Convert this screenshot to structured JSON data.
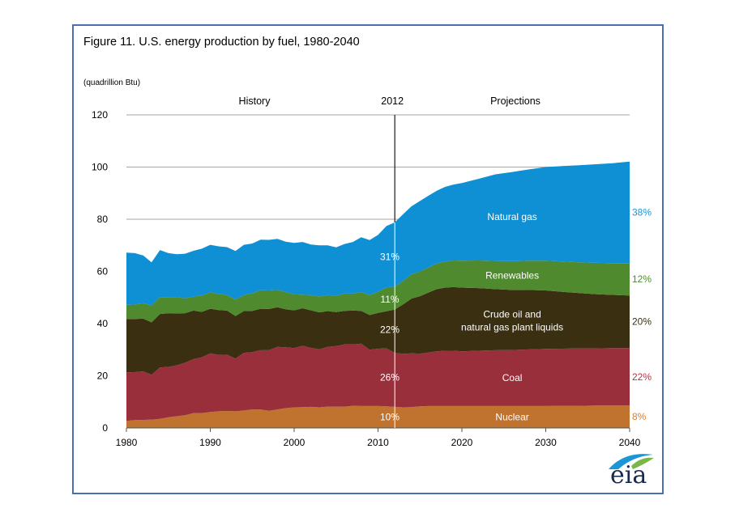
{
  "chart_data": {
    "type": "area",
    "stacked": true,
    "title": "Figure 11. U.S. energy production by fuel, 1980-2040",
    "ylabel": "(quadrillion  Btu)",
    "xlim": [
      1980,
      2040
    ],
    "ylim": [
      0,
      120
    ],
    "x_ticks": [
      1980,
      1990,
      2000,
      2010,
      2020,
      2030,
      2040
    ],
    "y_ticks": [
      0,
      20,
      40,
      60,
      80,
      100,
      120
    ],
    "divider": {
      "year": 2012,
      "label": "2012",
      "left_label": "History",
      "right_label": "Projections"
    },
    "x": [
      1980,
      1981,
      1982,
      1983,
      1984,
      1985,
      1986,
      1987,
      1988,
      1989,
      1990,
      1991,
      1992,
      1993,
      1994,
      1995,
      1996,
      1997,
      1998,
      1999,
      2000,
      2001,
      2002,
      2003,
      2004,
      2005,
      2006,
      2007,
      2008,
      2009,
      2010,
      2011,
      2012,
      2013,
      2014,
      2015,
      2016,
      2017,
      2018,
      2019,
      2020,
      2022,
      2024,
      2026,
      2028,
      2030,
      2032,
      2034,
      2036,
      2038,
      2040
    ],
    "series": [
      {
        "name": "Nuclear",
        "color": "#c0722f",
        "label_color": "#e07b2a",
        "history_share": "10%",
        "end_share": "8%",
        "values": [
          2.7,
          3.0,
          3.1,
          3.2,
          3.5,
          4.1,
          4.5,
          4.9,
          5.7,
          5.7,
          6.1,
          6.4,
          6.5,
          6.4,
          6.7,
          7.1,
          7.1,
          6.6,
          7.1,
          7.6,
          7.9,
          8.0,
          8.1,
          7.9,
          8.2,
          8.2,
          8.2,
          8.5,
          8.4,
          8.4,
          8.4,
          8.3,
          8.1,
          7.9,
          8.0,
          8.3,
          8.4,
          8.4,
          8.4,
          8.4,
          8.4,
          8.4,
          8.4,
          8.4,
          8.4,
          8.4,
          8.5,
          8.5,
          8.6,
          8.6,
          8.6
        ]
      },
      {
        "name": "Coal",
        "color": "#9a2f3c",
        "label_color": "#b03545",
        "history_share": "26%",
        "end_share": "22%",
        "values": [
          18.6,
          18.4,
          18.6,
          17.2,
          19.7,
          19.3,
          19.5,
          20.1,
          20.7,
          21.4,
          22.5,
          21.6,
          21.6,
          20.2,
          22.1,
          22.0,
          22.7,
          23.2,
          24.0,
          23.3,
          22.7,
          23.5,
          22.6,
          22.3,
          22.9,
          23.2,
          23.8,
          23.5,
          23.9,
          21.6,
          22.0,
          22.2,
          20.7,
          20.5,
          20.6,
          20.2,
          20.5,
          21.0,
          21.2,
          21.2,
          21.0,
          21.2,
          21.4,
          21.5,
          21.7,
          21.9,
          21.9,
          22.0,
          21.9,
          22.0,
          22.0
        ]
      },
      {
        "name": "Crude oil and natural gas plant liquids",
        "color": "#3b2f12",
        "label_color": "#3b2f12",
        "history_share": "22%",
        "end_share": "20%",
        "values": [
          20.5,
          20.4,
          20.2,
          20.1,
          20.5,
          20.6,
          19.9,
          19.0,
          18.6,
          17.4,
          17.1,
          17.2,
          16.9,
          16.3,
          16.0,
          15.8,
          15.9,
          15.8,
          15.2,
          14.6,
          14.5,
          14.4,
          14.4,
          14.1,
          13.7,
          13.0,
          12.9,
          13.0,
          12.6,
          13.3,
          13.7,
          14.2,
          16.6,
          19.0,
          21.0,
          22.0,
          23.0,
          23.8,
          24.2,
          24.4,
          24.4,
          24.0,
          23.4,
          23.0,
          22.8,
          22.4,
          21.8,
          21.2,
          20.8,
          20.4,
          20.2
        ]
      },
      {
        "name": "Renewables",
        "color": "#4f8a2e",
        "label_color": "#4f8a2e",
        "history_share": "11%",
        "end_share": "12%",
        "values": [
          5.4,
          5.5,
          5.9,
          6.4,
          6.5,
          6.1,
          6.2,
          5.7,
          5.3,
          6.3,
          6.2,
          6.2,
          5.9,
          6.3,
          6.1,
          6.7,
          7.1,
          7.1,
          6.6,
          6.6,
          6.1,
          5.2,
          5.8,
          6.1,
          6.1,
          6.2,
          6.6,
          6.5,
          7.2,
          7.6,
          8.1,
          9.2,
          8.8,
          9.0,
          9.3,
          9.5,
          9.6,
          9.8,
          10.0,
          10.2,
          10.3,
          10.6,
          10.8,
          11.0,
          11.2,
          11.4,
          11.6,
          11.8,
          12.0,
          12.2,
          12.4
        ]
      },
      {
        "name": "Natural gas",
        "color": "#0f8fd4",
        "label_color": "#1a96d6",
        "history_share": "31%",
        "end_share": "38%",
        "values": [
          20.0,
          19.7,
          18.3,
          16.6,
          18.0,
          16.9,
          16.5,
          17.1,
          17.6,
          17.9,
          18.3,
          18.2,
          18.4,
          18.6,
          19.3,
          19.1,
          19.4,
          19.4,
          19.6,
          19.3,
          19.7,
          20.2,
          19.4,
          19.6,
          19.1,
          18.6,
          19.0,
          19.8,
          21.0,
          21.1,
          21.8,
          23.5,
          24.6,
          25.6,
          26.1,
          27.0,
          27.5,
          27.9,
          28.6,
          29.1,
          29.8,
          31.3,
          33.2,
          34.2,
          35.0,
          35.9,
          36.6,
          37.2,
          37.8,
          38.3,
          38.9
        ]
      }
    ]
  },
  "logo": {
    "text": "eia",
    "name": "U.S. Energy Information Administration"
  }
}
